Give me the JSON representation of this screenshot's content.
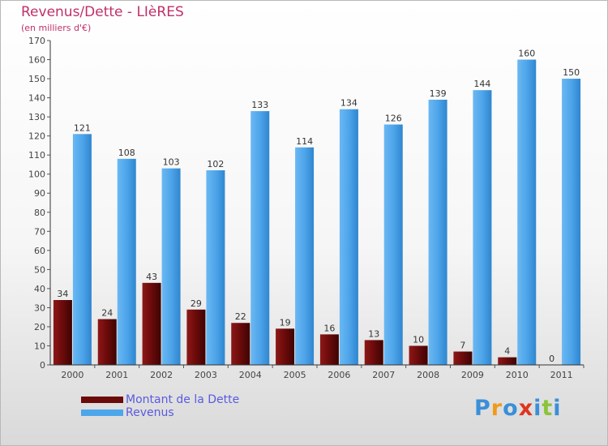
{
  "chart_data": {
    "type": "bar",
    "title": "Revenus/Dette - LIèRES",
    "subtitle": "(en milliers d'€)",
    "categories": [
      "2000",
      "2001",
      "2002",
      "2003",
      "2004",
      "2005",
      "2006",
      "2007",
      "2008",
      "2009",
      "2010",
      "2011"
    ],
    "series": [
      {
        "name": "Montant de la Dette",
        "color": "#6b0a0a",
        "values": [
          34,
          24,
          43,
          29,
          22,
          19,
          16,
          13,
          10,
          7,
          4,
          0
        ]
      },
      {
        "name": "Revenus",
        "color": "#4da6ea",
        "values": [
          121,
          108,
          103,
          102,
          133,
          114,
          134,
          126,
          139,
          144,
          160,
          150
        ]
      }
    ],
    "ylim": [
      0,
      170
    ],
    "ytick_step": 10,
    "grid": false,
    "legend": "bottom-left"
  },
  "logo": {
    "letters": [
      "P",
      "r",
      "o",
      "x",
      "i",
      "t",
      "i"
    ],
    "colors": [
      "#3a8fd8",
      "#f09a1a",
      "#3a8fd8",
      "#e0341e",
      "#3a8fd8",
      "#8ac43a",
      "#3a8fd8"
    ]
  }
}
